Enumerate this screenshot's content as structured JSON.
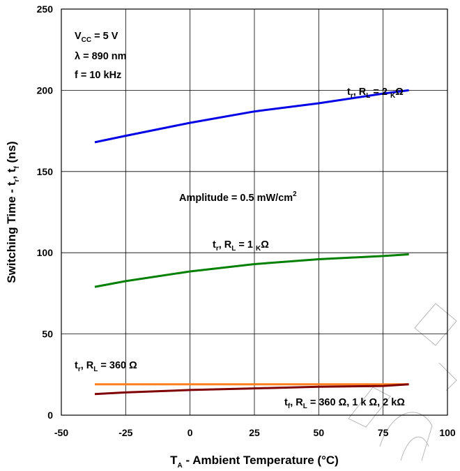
{
  "chart_data": {
    "type": "line",
    "xlabel": {
      "main": "T",
      "sub": "A",
      "rest": " - Ambient Temperature (°C)"
    },
    "ylabel": "Switching Time - t r, t f (ns)",
    "xlim": [
      -50,
      100
    ],
    "ylim": [
      0,
      250
    ],
    "xticks": [
      "-50",
      "-25",
      "0",
      "25",
      "50",
      "75",
      "100"
    ],
    "yticks": [
      "0",
      "50",
      "100",
      "150",
      "200",
      "250"
    ],
    "grid": true,
    "series": [
      {
        "name": "t r, R L = 2 kΩ",
        "color": "#0000e6",
        "x": [
          -37,
          -25,
          0,
          25,
          50,
          75,
          85
        ],
        "y": [
          168,
          172,
          180,
          187,
          192,
          198,
          200
        ]
      },
      {
        "name": "t r, R L = 1 kΩ",
        "color": "#007f00",
        "x": [
          -37,
          -25,
          0,
          25,
          50,
          75,
          85
        ],
        "y": [
          79,
          82.5,
          88.5,
          93,
          96,
          98,
          99
        ]
      },
      {
        "name": "t r, R L = 360 Ω",
        "color": "#ff7f1e",
        "x": [
          -37,
          85
        ],
        "y": [
          19,
          19
        ]
      },
      {
        "name": "t f, R L = 360 Ω, 1 kΩ, 2 kΩ",
        "color": "#7f0000",
        "x": [
          -37,
          -25,
          0,
          25,
          50,
          75,
          85
        ],
        "y": [
          13,
          14,
          15.5,
          16.5,
          17.5,
          18,
          19
        ]
      }
    ],
    "annotations": {
      "conditions": [
        {
          "main": "V",
          "sub": "CC",
          "rest": " = 5 V"
        },
        {
          "main": "λ = 890 nm",
          "sub": "",
          "rest": ""
        },
        {
          "main": "f = 10 kHz",
          "sub": "",
          "rest": ""
        }
      ],
      "amplitude": {
        "main": "Amplitude = 0.5 mW/cm",
        "sup": "2"
      },
      "label_2k": {
        "a": "t",
        "a_sub": "r",
        "b": ", R",
        "b_sub": "L",
        "c": " = 2 ",
        "c_sub": "K",
        "d": "Ω"
      },
      "label_1k": {
        "a": "t",
        "a_sub": "r",
        "b": ", R",
        "b_sub": "L",
        "c": " = 1 ",
        "c_sub": "K",
        "d": "Ω"
      },
      "label_360": {
        "a": "t",
        "a_sub": "r",
        "b": ", R",
        "b_sub": "L",
        "c": " = 360 Ω"
      },
      "label_tf": {
        "a": "t",
        "a_sub": "f",
        "b": ", R",
        "b_sub": "L",
        "c": " = 360 Ω, 1 k Ω, 2 kΩ"
      }
    }
  }
}
